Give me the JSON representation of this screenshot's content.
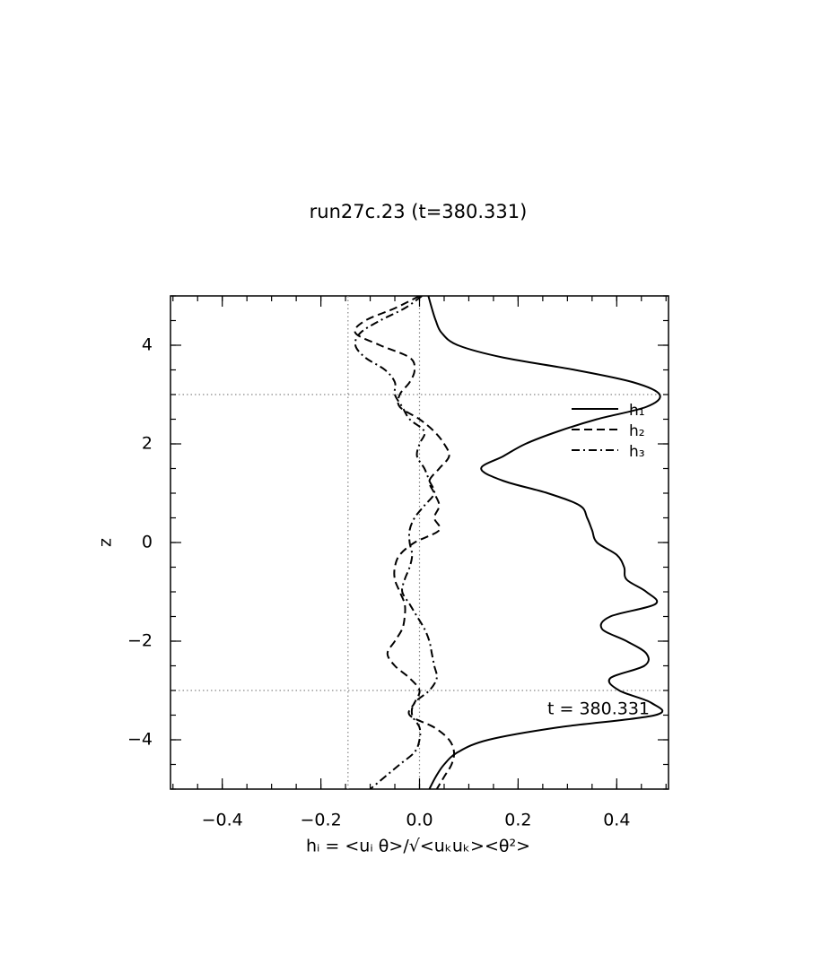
{
  "chart_data": {
    "type": "line",
    "title": "run27c.23 (t=380.331)",
    "x_label": "hᵢ = <uᵢ θ>/√<uₖuₖ><θ²>",
    "y_label": "z",
    "annotation": "t = 380.331",
    "z": [
      5,
      4.75,
      4.5,
      4.25,
      4,
      3.75,
      3.5,
      3.25,
      3,
      2.75,
      2.5,
      2.25,
      2,
      1.75,
      1.5,
      1.25,
      1,
      0.75,
      0.5,
      0.25,
      0,
      -0.25,
      -0.5,
      -0.75,
      -1,
      -1.25,
      -1.5,
      -1.75,
      -2,
      -2.25,
      -2.5,
      -2.75,
      -3,
      -3.25,
      -3.5,
      -3.75,
      -4,
      -4.25,
      -4.5,
      -4.75,
      -5
    ],
    "series": [
      {
        "name": "h₁",
        "color": "#000000",
        "style": "solid",
        "values": [
          0.018,
          0.025,
          0.033,
          0.045,
          0.078,
          0.17,
          0.315,
          0.433,
          0.487,
          0.46,
          0.36,
          0.28,
          0.215,
          0.17,
          0.125,
          0.17,
          0.26,
          0.325,
          0.34,
          0.35,
          0.36,
          0.4,
          0.415,
          0.42,
          0.46,
          0.478,
          0.387,
          0.37,
          0.42,
          0.46,
          0.456,
          0.387,
          0.405,
          0.47,
          0.478,
          0.28,
          0.14,
          0.078,
          0.05,
          0.033,
          0.02
        ]
      },
      {
        "name": "h₂",
        "color": "#000000",
        "style": "dashed",
        "values": [
          0.0,
          -0.05,
          -0.11,
          -0.13,
          -0.08,
          -0.02,
          -0.01,
          -0.02,
          -0.04,
          -0.04,
          0.0,
          0.03,
          0.05,
          0.06,
          0.04,
          0.02,
          0.03,
          0.04,
          0.03,
          0.04,
          -0.01,
          -0.04,
          -0.05,
          -0.05,
          -0.04,
          -0.03,
          -0.03,
          -0.035,
          -0.05,
          -0.065,
          -0.05,
          -0.02,
          0.0,
          -0.01,
          -0.02,
          0.03,
          0.06,
          0.07,
          0.065,
          0.05,
          0.035
        ]
      },
      {
        "name": "h₃",
        "color": "#000000",
        "style": "dashdot",
        "values": [
          0.005,
          -0.03,
          -0.08,
          -0.12,
          -0.13,
          -0.11,
          -0.07,
          -0.05,
          -0.05,
          -0.035,
          -0.02,
          0.01,
          0.0,
          -0.005,
          0.01,
          0.02,
          0.03,
          0.01,
          -0.01,
          -0.02,
          -0.02,
          -0.015,
          -0.02,
          -0.03,
          -0.035,
          -0.02,
          -0.005,
          0.01,
          0.02,
          0.025,
          0.03,
          0.035,
          0.02,
          -0.01,
          -0.015,
          0.0,
          0.0,
          -0.01,
          -0.04,
          -0.07,
          -0.1
        ]
      }
    ],
    "xlim": [
      -0.505,
      0.505
    ],
    "ylim": [
      -5,
      5
    ],
    "xticks": [
      {
        "value": -0.4,
        "label": "−0.4"
      },
      {
        "value": -0.2,
        "label": "−0.2"
      },
      {
        "value": 0,
        "label": "0.0"
      },
      {
        "value": 0.2,
        "label": "0.2"
      },
      {
        "value": 0.4,
        "label": "0.4"
      }
    ],
    "yticks": [
      {
        "value": -4,
        "label": "−4"
      },
      {
        "value": -2,
        "label": "−2"
      },
      0,
      2,
      4
    ],
    "minor_ticks": {
      "x": 0.05,
      "y": 0.5
    },
    "vlines": [
      -0.145,
      0
    ],
    "hlines": [
      3,
      -3
    ],
    "legend": "upper right"
  }
}
